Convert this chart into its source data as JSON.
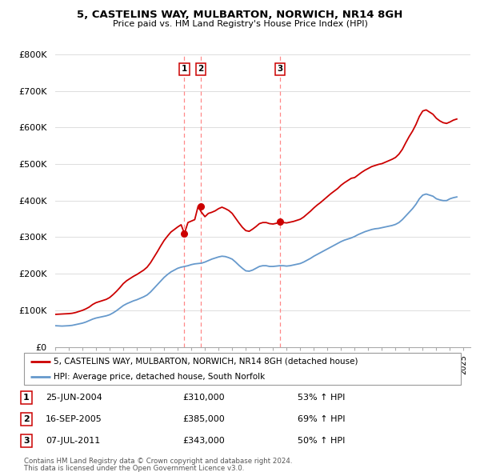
{
  "title": "5, CASTELINS WAY, MULBARTON, NORWICH, NR14 8GH",
  "subtitle": "Price paid vs. HM Land Registry's House Price Index (HPI)",
  "legend_line1": "5, CASTELINS WAY, MULBARTON, NORWICH, NR14 8GH (detached house)",
  "legend_line2": "HPI: Average price, detached house, South Norfolk",
  "footer1": "Contains HM Land Registry data © Crown copyright and database right 2024.",
  "footer2": "This data is licensed under the Open Government Licence v3.0.",
  "transactions": [
    {
      "label": "1",
      "date": "25-JUN-2004",
      "price": "£310,000",
      "change": "53% ↑ HPI",
      "x_year": 2004.49,
      "y_val": 310000
    },
    {
      "label": "2",
      "date": "16-SEP-2005",
      "price": "£385,000",
      "change": "69% ↑ HPI",
      "x_year": 2005.71,
      "y_val": 385000
    },
    {
      "label": "3",
      "date": "07-JUL-2011",
      "price": "£343,000",
      "change": "50% ↑ HPI",
      "x_year": 2011.52,
      "y_val": 343000
    }
  ],
  "red_color": "#cc0000",
  "blue_color": "#6699cc",
  "dashed_color": "#ff8888",
  "background_color": "#ffffff",
  "grid_color": "#dddddd",
  "ylim": [
    0,
    800000
  ],
  "xlim_start": 1995.0,
  "xlim_end": 2025.5,
  "hpi_data": {
    "years": [
      1995.0,
      1995.25,
      1995.5,
      1995.75,
      1996.0,
      1996.25,
      1996.5,
      1996.75,
      1997.0,
      1997.25,
      1997.5,
      1997.75,
      1998.0,
      1998.25,
      1998.5,
      1998.75,
      1999.0,
      1999.25,
      1999.5,
      1999.75,
      2000.0,
      2000.25,
      2000.5,
      2000.75,
      2001.0,
      2001.25,
      2001.5,
      2001.75,
      2002.0,
      2002.25,
      2002.5,
      2002.75,
      2003.0,
      2003.25,
      2003.5,
      2003.75,
      2004.0,
      2004.25,
      2004.5,
      2004.75,
      2005.0,
      2005.25,
      2005.5,
      2005.75,
      2006.0,
      2006.25,
      2006.5,
      2006.75,
      2007.0,
      2007.25,
      2007.5,
      2007.75,
      2008.0,
      2008.25,
      2008.5,
      2008.75,
      2009.0,
      2009.25,
      2009.5,
      2009.75,
      2010.0,
      2010.25,
      2010.5,
      2010.75,
      2011.0,
      2011.25,
      2011.5,
      2011.75,
      2012.0,
      2012.25,
      2012.5,
      2012.75,
      2013.0,
      2013.25,
      2013.5,
      2013.75,
      2014.0,
      2014.25,
      2014.5,
      2014.75,
      2015.0,
      2015.25,
      2015.5,
      2015.75,
      2016.0,
      2016.25,
      2016.5,
      2016.75,
      2017.0,
      2017.25,
      2017.5,
      2017.75,
      2018.0,
      2018.25,
      2018.5,
      2018.75,
      2019.0,
      2019.25,
      2019.5,
      2019.75,
      2020.0,
      2020.25,
      2020.5,
      2020.75,
      2021.0,
      2021.25,
      2021.5,
      2021.75,
      2022.0,
      2022.25,
      2022.5,
      2022.75,
      2023.0,
      2023.25,
      2023.5,
      2023.75,
      2024.0,
      2024.25,
      2024.5
    ],
    "values": [
      58000,
      57500,
      57000,
      57500,
      58000,
      59000,
      61000,
      63000,
      65000,
      68000,
      72000,
      76000,
      79000,
      81000,
      83000,
      85000,
      88000,
      93000,
      99000,
      106000,
      113000,
      118000,
      122000,
      126000,
      129000,
      133000,
      137000,
      142000,
      150000,
      160000,
      170000,
      180000,
      190000,
      198000,
      205000,
      210000,
      215000,
      218000,
      220000,
      222000,
      225000,
      227000,
      228000,
      229000,
      232000,
      236000,
      240000,
      243000,
      246000,
      248000,
      247000,
      244000,
      240000,
      232000,
      223000,
      215000,
      208000,
      207000,
      210000,
      215000,
      220000,
      222000,
      222000,
      220000,
      220000,
      221000,
      222000,
      222000,
      221000,
      222000,
      224000,
      226000,
      228000,
      232000,
      237000,
      242000,
      248000,
      253000,
      258000,
      263000,
      268000,
      273000,
      278000,
      283000,
      288000,
      292000,
      295000,
      298000,
      302000,
      307000,
      311000,
      315000,
      318000,
      321000,
      323000,
      324000,
      326000,
      328000,
      330000,
      332000,
      335000,
      340000,
      348000,
      358000,
      368000,
      378000,
      390000,
      405000,
      415000,
      418000,
      415000,
      412000,
      405000,
      402000,
      400000,
      400000,
      405000,
      408000,
      410000
    ]
  },
  "red_data": {
    "years": [
      1995.0,
      1995.25,
      1995.5,
      1995.75,
      1996.0,
      1996.25,
      1996.5,
      1996.75,
      1997.0,
      1997.25,
      1997.5,
      1997.75,
      1998.0,
      1998.25,
      1998.5,
      1998.75,
      1999.0,
      1999.25,
      1999.5,
      1999.75,
      2000.0,
      2000.25,
      2000.5,
      2000.75,
      2001.0,
      2001.25,
      2001.5,
      2001.75,
      2002.0,
      2002.25,
      2002.5,
      2002.75,
      2003.0,
      2003.25,
      2003.5,
      2003.75,
      2004.0,
      2004.25,
      2004.49,
      2004.75,
      2005.0,
      2005.25,
      2005.5,
      2005.71,
      2006.0,
      2006.25,
      2006.5,
      2006.75,
      2007.0,
      2007.25,
      2007.5,
      2007.75,
      2008.0,
      2008.25,
      2008.5,
      2008.75,
      2009.0,
      2009.25,
      2009.5,
      2009.75,
      2010.0,
      2010.25,
      2010.5,
      2010.75,
      2011.0,
      2011.25,
      2011.52,
      2011.75,
      2012.0,
      2012.25,
      2012.5,
      2012.75,
      2013.0,
      2013.25,
      2013.5,
      2013.75,
      2014.0,
      2014.25,
      2014.5,
      2014.75,
      2015.0,
      2015.25,
      2015.5,
      2015.75,
      2016.0,
      2016.25,
      2016.5,
      2016.75,
      2017.0,
      2017.25,
      2017.5,
      2017.75,
      2018.0,
      2018.25,
      2018.5,
      2018.75,
      2019.0,
      2019.25,
      2019.5,
      2019.75,
      2020.0,
      2020.25,
      2020.5,
      2020.75,
      2021.0,
      2021.25,
      2021.5,
      2021.75,
      2022.0,
      2022.25,
      2022.5,
      2022.75,
      2023.0,
      2023.25,
      2023.5,
      2023.75,
      2024.0,
      2024.25,
      2024.5
    ],
    "values": [
      89000,
      89500,
      90000,
      90500,
      91000,
      92000,
      94000,
      97000,
      100000,
      104000,
      109000,
      116000,
      121000,
      124000,
      127000,
      130000,
      135000,
      143000,
      152000,
      162000,
      173000,
      181000,
      187000,
      193000,
      198000,
      204000,
      210000,
      218000,
      230000,
      245000,
      260000,
      276000,
      291000,
      303000,
      314000,
      321000,
      328000,
      334000,
      310000,
      340000,
      344000,
      348000,
      385000,
      370000,
      356000,
      365000,
      368000,
      372000,
      378000,
      382000,
      378000,
      373000,
      365000,
      352000,
      339000,
      327000,
      318000,
      316000,
      322000,
      329000,
      337000,
      340000,
      340000,
      337000,
      336000,
      338000,
      343000,
      340000,
      339000,
      341000,
      343000,
      346000,
      349000,
      355000,
      363000,
      371000,
      380000,
      388000,
      395000,
      403000,
      411000,
      419000,
      426000,
      433000,
      442000,
      449000,
      455000,
      461000,
      463000,
      470000,
      477000,
      483000,
      488000,
      493000,
      496000,
      499000,
      501000,
      505000,
      509000,
      513000,
      518000,
      527000,
      540000,
      558000,
      575000,
      590000,
      608000,
      630000,
      645000,
      648000,
      642000,
      636000,
      625000,
      618000,
      613000,
      611000,
      615000,
      620000,
      623000
    ]
  }
}
